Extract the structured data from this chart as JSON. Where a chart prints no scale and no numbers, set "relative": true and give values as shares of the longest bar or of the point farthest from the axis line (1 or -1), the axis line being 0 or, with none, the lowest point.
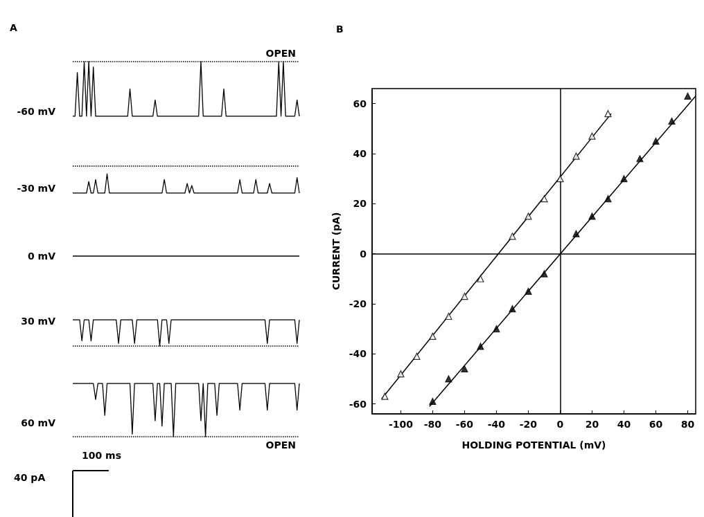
{
  "chart_data": [
    {
      "type": "line",
      "ylabel": "-60 mV",
      "relative": true,
      "categories": [
        null,
        null,
        null,
        null,
        null,
        null,
        null,
        null,
        null,
        null,
        null,
        null,
        null,
        null,
        null,
        null,
        null,
        null,
        null,
        null,
        null,
        null,
        null,
        null,
        null,
        null,
        null,
        null,
        null,
        null,
        null,
        null,
        null,
        null,
        null,
        null,
        null,
        null,
        null,
        null,
        null,
        null,
        null,
        null,
        null,
        null,
        null,
        null,
        null,
        null,
        null,
        null,
        null,
        null,
        null,
        null,
        null,
        null,
        null,
        null,
        null,
        null,
        null,
        null,
        null,
        null,
        null,
        null,
        null,
        null,
        null,
        null,
        null,
        null,
        null,
        null,
        null,
        null,
        null,
        null,
        null,
        null,
        null,
        null,
        null,
        null,
        null,
        null,
        null,
        null,
        null,
        null,
        null,
        null,
        null,
        null,
        null,
        null,
        null,
        null
      ],
      "values": [
        0,
        0,
        0.8,
        0,
        0,
        1,
        0,
        1,
        0,
        0.9,
        0,
        0,
        0,
        0,
        0,
        0,
        0,
        0,
        0,
        0,
        0,
        0,
        0,
        0,
        0,
        0.5,
        0,
        0,
        0,
        0,
        0,
        0,
        0,
        0,
        0,
        0,
        0.3,
        0,
        0,
        0,
        0,
        0,
        0,
        0,
        0,
        0,
        0,
        0,
        0,
        0,
        0,
        0,
        0,
        0,
        0,
        0,
        1,
        0,
        0,
        0,
        0,
        0,
        0,
        0,
        0,
        0,
        0.5,
        0,
        0,
        0,
        0,
        0,
        0,
        0,
        0,
        0,
        0,
        0,
        0,
        0,
        0,
        0,
        0,
        0,
        0,
        0,
        0,
        0,
        0,
        0,
        1,
        0,
        1,
        0,
        0,
        0,
        0,
        0,
        0.3,
        0
      ],
      "color": "#000000",
      "marker": "none",
      "ref_lines": [
        {
          "axis": "y",
          "value": 1,
          "label": "OPEN",
          "line_style": "dotted"
        }
      ]
    },
    {
      "type": "line",
      "ylabel": "-30 mV",
      "relative": true,
      "categories": [
        null,
        null,
        null,
        null,
        null,
        null,
        null,
        null,
        null,
        null,
        null,
        null,
        null,
        null,
        null,
        null,
        null,
        null,
        null,
        null,
        null,
        null,
        null,
        null,
        null,
        null,
        null,
        null,
        null,
        null,
        null,
        null,
        null,
        null,
        null,
        null,
        null,
        null,
        null,
        null,
        null,
        null,
        null,
        null,
        null,
        null,
        null,
        null,
        null,
        null,
        null,
        null,
        null,
        null,
        null,
        null,
        null,
        null,
        null,
        null,
        null,
        null,
        null,
        null,
        null,
        null,
        null,
        null,
        null,
        null,
        null,
        null,
        null,
        null,
        null,
        null,
        null,
        null,
        null,
        null,
        null,
        null,
        null,
        null,
        null,
        null,
        null,
        null,
        null,
        null,
        null,
        null,
        null,
        null,
        null,
        null,
        null,
        null,
        null,
        null
      ],
      "values": [
        0,
        0,
        0,
        0,
        0,
        0,
        0,
        0.6,
        0,
        0,
        0.7,
        0,
        0,
        0,
        0,
        1,
        0,
        0,
        0,
        0,
        0,
        0,
        0,
        0,
        0,
        0,
        0,
        0,
        0,
        0,
        0,
        0,
        0,
        0,
        0,
        0,
        0,
        0,
        0,
        0,
        0.7,
        0,
        0,
        0,
        0,
        0,
        0,
        0,
        0,
        0,
        0.5,
        0,
        0.4,
        0,
        0,
        0,
        0,
        0,
        0,
        0,
        0,
        0,
        0,
        0,
        0,
        0,
        0,
        0,
        0,
        0,
        0,
        0,
        0,
        0.7,
        0,
        0,
        0,
        0,
        0,
        0,
        0.7,
        0,
        0,
        0,
        0,
        0,
        0.5,
        0,
        0,
        0,
        0,
        0,
        0,
        0,
        0,
        0,
        0,
        0,
        0.8,
        0
      ],
      "color": "#000000",
      "marker": "none",
      "ref_lines": [
        {
          "axis": "y",
          "value": 1.4,
          "line_style": "dotted"
        }
      ]
    },
    {
      "type": "other",
      "annotations": [
        "0 mV"
      ]
    },
    {
      "type": "line",
      "ylabel": "30 mV",
      "relative": true,
      "categories": [
        null,
        null,
        null,
        null,
        null,
        null,
        null,
        null,
        null,
        null,
        null,
        null,
        null,
        null,
        null,
        null,
        null,
        null,
        null,
        null,
        null,
        null,
        null,
        null,
        null,
        null,
        null,
        null,
        null,
        null,
        null,
        null,
        null,
        null,
        null,
        null,
        null,
        null,
        null,
        null,
        null,
        null,
        null,
        null,
        null,
        null,
        null,
        null,
        null,
        null,
        null,
        null,
        null,
        null,
        null,
        null,
        null,
        null,
        null,
        null,
        null,
        null,
        null,
        null,
        null,
        null,
        null,
        null,
        null,
        null,
        null,
        null,
        null,
        null,
        null,
        null,
        null,
        null,
        null,
        null,
        null,
        null,
        null,
        null,
        null,
        null,
        null,
        null,
        null,
        null,
        null,
        null,
        null,
        null,
        null,
        null,
        null,
        null,
        null,
        null
      ],
      "values": [
        1,
        1,
        1,
        1,
        0.2,
        1,
        1,
        1,
        0.2,
        1,
        1,
        1,
        1,
        1,
        1,
        1,
        1,
        1,
        1,
        1,
        0.1,
        1,
        1,
        1,
        1,
        1,
        1,
        0.1,
        1,
        1,
        1,
        1,
        1,
        1,
        1,
        1,
        1,
        1,
        0,
        1,
        1,
        1,
        0.1,
        1,
        1,
        1,
        1,
        1,
        1,
        1,
        1,
        1,
        1,
        1,
        1,
        1,
        1,
        1,
        1,
        1,
        1,
        1,
        1,
        1,
        1,
        1,
        1,
        1,
        1,
        1,
        1,
        1,
        1,
        1,
        1,
        1,
        1,
        1,
        1,
        1,
        1,
        1,
        1,
        1,
        1,
        0.1,
        1,
        1,
        1,
        1,
        1,
        1,
        1,
        1,
        1,
        1,
        1,
        1,
        0.1,
        1
      ],
      "color": "#000000",
      "marker": "none",
      "ref_lines": [
        {
          "axis": "y",
          "value": 0,
          "line_style": "dotted"
        }
      ]
    },
    {
      "type": "line",
      "ylabel": "60 mV",
      "relative": true,
      "categories": [
        null,
        null,
        null,
        null,
        null,
        null,
        null,
        null,
        null,
        null,
        null,
        null,
        null,
        null,
        null,
        null,
        null,
        null,
        null,
        null,
        null,
        null,
        null,
        null,
        null,
        null,
        null,
        null,
        null,
        null,
        null,
        null,
        null,
        null,
        null,
        null,
        null,
        null,
        null,
        null,
        null,
        null,
        null,
        null,
        null,
        null,
        null,
        null,
        null,
        null,
        null,
        null,
        null,
        null,
        null,
        null,
        null,
        null,
        null,
        null,
        null,
        null,
        null,
        null,
        null,
        null,
        null,
        null,
        null,
        null,
        null,
        null,
        null,
        null,
        null,
        null,
        null,
        null,
        null,
        null,
        null,
        null,
        null,
        null,
        null,
        null,
        null,
        null,
        null,
        null,
        null,
        null,
        null,
        null,
        null,
        null,
        null,
        null,
        null,
        null
      ],
      "values": [
        1,
        1,
        1,
        1,
        1,
        1,
        1,
        1,
        1,
        1,
        0.7,
        1,
        1,
        1,
        0.4,
        1,
        1,
        1,
        1,
        1,
        1,
        1,
        1,
        1,
        1,
        1,
        0.05,
        1,
        1,
        1,
        1,
        1,
        1,
        1,
        1,
        1,
        0.3,
        1,
        1,
        0.2,
        1,
        1,
        1,
        1,
        0,
        1,
        1,
        1,
        1,
        1,
        1,
        1,
        1,
        1,
        1,
        1,
        0.3,
        1,
        0,
        1,
        1,
        1,
        1,
        0.4,
        1,
        1,
        1,
        1,
        1,
        1,
        1,
        1,
        1,
        0.5,
        1,
        1,
        1,
        1,
        1,
        1,
        1,
        1,
        1,
        1,
        1,
        0.5,
        1,
        1,
        1,
        1,
        1,
        1,
        1,
        1,
        1,
        1,
        1,
        1,
        0.5,
        1
      ],
      "color": "#000000",
      "marker": "none",
      "ref_lines": [
        {
          "axis": "y",
          "value": 0,
          "label": "OPEN",
          "line_style": "dotted"
        }
      ]
    },
    {
      "type": "other",
      "annotations": [
        "A",
        "100 ms",
        "40 pA"
      ]
    },
    {
      "type": "scatter",
      "title": "B",
      "xlabel": "HOLDING POTENTIAL (mV)",
      "ylabel": "CURRENT (pA)",
      "xlim": [
        -118,
        85
      ],
      "ylim": [
        -64,
        66
      ],
      "xticks": [
        -100,
        -80,
        -60,
        -40,
        -20,
        0,
        20,
        40,
        60,
        80
      ],
      "yticks": [
        -60,
        -40,
        -20,
        0,
        20,
        40,
        60
      ],
      "marker": "triangle",
      "grid": false,
      "ref_lines": [
        {
          "axis": "x",
          "value": 0
        },
        {
          "axis": "y",
          "value": 0
        }
      ],
      "series": [
        {
          "type": "scatter",
          "color": "#ffffff",
          "x": [
            -110,
            -100,
            -90,
            -80,
            -70,
            -60,
            -50,
            -30,
            -20,
            -10,
            0,
            10,
            20,
            30
          ],
          "values": [
            -57,
            -48,
            -41,
            -33,
            -25,
            -17,
            -10,
            7,
            15,
            22,
            30,
            39,
            47,
            56
          ]
        },
        {
          "type": "scatter",
          "color": "#000000",
          "x": [
            -80,
            -70,
            -60,
            -50,
            -40,
            -30,
            -20,
            -10,
            10,
            20,
            30,
            40,
            50,
            60,
            70,
            80
          ],
          "values": [
            -59,
            -50,
            -46,
            -37,
            -30,
            -22,
            -15,
            -8,
            8,
            15,
            22,
            30,
            38,
            45,
            53,
            63
          ]
        },
        {
          "type": "line",
          "color": "#000000",
          "marker": "none",
          "x": [
            -112,
            32
          ],
          "values": [
            -58,
            56
          ]
        },
        {
          "type": "line",
          "color": "#000000",
          "marker": "none",
          "x": [
            -82,
            85
          ],
          "values": [
            -61,
            63
          ]
        }
      ]
    }
  ]
}
